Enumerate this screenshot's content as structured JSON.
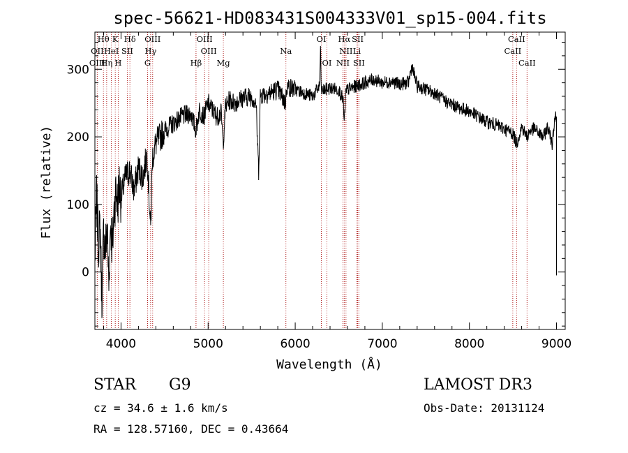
{
  "chart_data": {
    "type": "line",
    "title": "spec-56621-HD083431S004333V01_sp15-004.fits",
    "xlabel": "Wavelength (Å)",
    "ylabel": "Flux (relative)",
    "xlim": [
      3700,
      9100
    ],
    "ylim": [
      -85,
      355
    ],
    "xticks": [
      4000,
      5000,
      6000,
      7000,
      8000,
      9000
    ],
    "xtick_labels": [
      "4000",
      "5000",
      "6000",
      "7000",
      "8000",
      "9000"
    ],
    "yticks": [
      0,
      100,
      200,
      300
    ],
    "ytick_labels": [
      "0",
      "100",
      "200",
      "300"
    ],
    "series": [
      {
        "name": "flux",
        "x": [
          3700,
          3720,
          3740,
          3760,
          3780,
          3800,
          3820,
          3840,
          3860,
          3880,
          3900,
          3920,
          3940,
          3960,
          3980,
          4000,
          4050,
          4100,
          4150,
          4200,
          4250,
          4300,
          4320,
          4340,
          4360,
          4400,
          4450,
          4500,
          4600,
          4700,
          4800,
          4860,
          4900,
          4950,
          5000,
          5050,
          5100,
          5150,
          5172,
          5200,
          5250,
          5300,
          5400,
          5500,
          5550,
          5580,
          5600,
          5700,
          5800,
          5890,
          5900,
          6000,
          6100,
          6200,
          6280,
          6290,
          6300,
          6400,
          6500,
          6550,
          6563,
          6580,
          6600,
          6700,
          6800,
          6900,
          7000,
          7100,
          7200,
          7300,
          7340,
          7400,
          7500,
          7600,
          7700,
          7800,
          7900,
          8000,
          8100,
          8200,
          8300,
          8400,
          8500,
          8542,
          8600,
          8662,
          8700,
          8750,
          8800,
          8850,
          8900,
          8950,
          8980,
          9000
        ],
        "y": [
          20,
          110,
          40,
          70,
          -40,
          60,
          30,
          70,
          -20,
          80,
          30,
          90,
          120,
          100,
          130,
          110,
          140,
          150,
          120,
          155,
          140,
          175,
          120,
          60,
          170,
          190,
          200,
          210,
          220,
          230,
          235,
          210,
          240,
          230,
          250,
          240,
          230,
          235,
          190,
          245,
          255,
          250,
          258,
          260,
          250,
          150,
          262,
          265,
          270,
          250,
          275,
          270,
          265,
          260,
          275,
          330,
          268,
          272,
          270,
          255,
          220,
          265,
          270,
          275,
          280,
          285,
          280,
          282,
          278,
          280,
          305,
          275,
          270,
          265,
          255,
          248,
          242,
          238,
          230,
          222,
          218,
          212,
          205,
          190,
          215,
          200,
          210,
          212,
          205,
          200,
          215,
          190,
          230,
          230
        ]
      }
    ],
    "annotations": [
      {
        "row": 1,
        "label": "Hθ",
        "wavelength": 3798
      },
      {
        "row": 1,
        "label": "K",
        "wavelength": 3934
      },
      {
        "row": 1,
        "label": "Hδ",
        "wavelength": 4102
      },
      {
        "row": 1,
        "label": "OIII",
        "wavelength": 4363
      },
      {
        "row": 1,
        "label": "OIII",
        "wavelength": 4959
      },
      {
        "row": 1,
        "label": "OI",
        "wavelength": 6300
      },
      {
        "row": 1,
        "label": "Hα",
        "wavelength": 6563
      },
      {
        "row": 1,
        "label": "SII",
        "wavelength": 6717
      },
      {
        "row": 1,
        "label": "CaII",
        "wavelength": 8542
      },
      {
        "row": 2,
        "label": "OII",
        "wavelength": 3727
      },
      {
        "row": 2,
        "label": "HeI",
        "wavelength": 3889
      },
      {
        "row": 2,
        "label": "SII",
        "wavelength": 4072
      },
      {
        "row": 2,
        "label": "Hγ",
        "wavelength": 4340
      },
      {
        "row": 2,
        "label": "OIII",
        "wavelength": 5007
      },
      {
        "row": 2,
        "label": "Na",
        "wavelength": 5893
      },
      {
        "row": 2,
        "label": "NII",
        "wavelength": 6583
      },
      {
        "row": 2,
        "label": "Li",
        "wavelength": 6708
      },
      {
        "row": 2,
        "label": "CaII",
        "wavelength": 8498
      },
      {
        "row": 3,
        "label": "OIII",
        "wavelength": 3727
      },
      {
        "row": 3,
        "label": "Hη",
        "wavelength": 3835
      },
      {
        "row": 3,
        "label": "H",
        "wavelength": 3968
      },
      {
        "row": 3,
        "label": "G",
        "wavelength": 4305
      },
      {
        "row": 3,
        "label": "Hβ",
        "wavelength": 4861
      },
      {
        "row": 3,
        "label": "Mg",
        "wavelength": 5175
      },
      {
        "row": 3,
        "label": "OI",
        "wavelength": 6364
      },
      {
        "row": 3,
        "label": "NII",
        "wavelength": 6548
      },
      {
        "row": 3,
        "label": "SII",
        "wavelength": 6731
      },
      {
        "row": 3,
        "label": "CaII",
        "wavelength": 8662
      }
    ],
    "line_markers": [
      3727,
      3798,
      3835,
      3889,
      3934,
      3968,
      4072,
      4102,
      4305,
      4340,
      4363,
      4861,
      4959,
      5007,
      5175,
      5893,
      6300,
      6364,
      6548,
      6563,
      6583,
      6708,
      6717,
      6731,
      8498,
      8542,
      8662
    ],
    "colors": {
      "spectrum": "#000000",
      "markers": "#b22222"
    }
  },
  "info": {
    "object_type": "STAR",
    "subclass": "G9",
    "survey": "LAMOST DR3",
    "redshift": "cz = 34.6 ± 1.6 km/s",
    "obs_date": "Obs-Date: 20131124",
    "coords": "RA = 128.57160, DEC =   0.43664"
  }
}
